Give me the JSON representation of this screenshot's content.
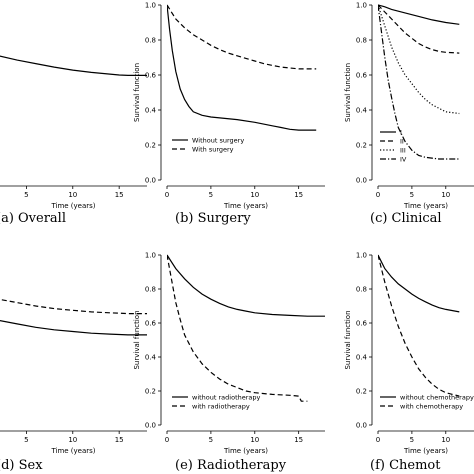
{
  "chart_data": [
    {
      "id": "overall",
      "type": "line",
      "caption": "(a)  Overall",
      "xlabel": "Time (years)",
      "ylabel": "",
      "xlim": [
        0,
        18
      ],
      "ylim": [
        0,
        1
      ],
      "xticks": [
        "5",
        "10",
        "15"
      ],
      "yticks": [],
      "legend": [],
      "series": [
        {
          "style": "solid",
          "points": [
            [
              -1,
              0.76
            ],
            [
              0,
              0.74
            ],
            [
              2,
              0.71
            ],
            [
              4,
              0.685
            ],
            [
              6,
              0.665
            ],
            [
              8,
              0.645
            ],
            [
              10,
              0.628
            ],
            [
              12,
              0.615
            ],
            [
              14,
              0.605
            ],
            [
              15,
              0.6
            ],
            [
              16,
              0.598
            ],
            [
              18,
              0.598
            ]
          ]
        }
      ]
    },
    {
      "id": "surgery",
      "type": "line",
      "caption": "(b)  Surgery",
      "xlabel": "Time (years)",
      "ylabel": "Survival function",
      "xlim": [
        0,
        18
      ],
      "ylim": [
        0,
        1
      ],
      "xticks": [
        "0",
        "5",
        "10",
        "15"
      ],
      "yticks": [
        "0.0",
        "0.2",
        "0.4",
        "0.6",
        "0.8",
        "1.0"
      ],
      "legend": [
        {
          "label": "Without surgery",
          "style": "solid"
        },
        {
          "label": "With surgery",
          "style": "dashed"
        }
      ],
      "series": [
        {
          "style": "solid",
          "points": [
            [
              0,
              1.0
            ],
            [
              0.3,
              0.86
            ],
            [
              0.6,
              0.74
            ],
            [
              1,
              0.62
            ],
            [
              1.5,
              0.52
            ],
            [
              2,
              0.46
            ],
            [
              2.5,
              0.42
            ],
            [
              3,
              0.39
            ],
            [
              4,
              0.37
            ],
            [
              5,
              0.36
            ],
            [
              6,
              0.355
            ],
            [
              8,
              0.345
            ],
            [
              10,
              0.33
            ],
            [
              12,
              0.31
            ],
            [
              13,
              0.3
            ],
            [
              14,
              0.29
            ],
            [
              15,
              0.285
            ],
            [
              17,
              0.285
            ]
          ]
        },
        {
          "style": "dashed",
          "points": [
            [
              0,
              1.0
            ],
            [
              1,
              0.92
            ],
            [
              2,
              0.87
            ],
            [
              3,
              0.83
            ],
            [
              4,
              0.8
            ],
            [
              5,
              0.77
            ],
            [
              6,
              0.745
            ],
            [
              7,
              0.725
            ],
            [
              8,
              0.71
            ],
            [
              9,
              0.695
            ],
            [
              10,
              0.68
            ],
            [
              11,
              0.665
            ],
            [
              12,
              0.655
            ],
            [
              13,
              0.645
            ],
            [
              14,
              0.64
            ],
            [
              15,
              0.635
            ],
            [
              17,
              0.635
            ]
          ]
        }
      ]
    },
    {
      "id": "clinical",
      "type": "line",
      "caption": "(c)  Clinical",
      "xlabel": "Time (years)",
      "ylabel": "Survival function",
      "xlim": [
        0,
        18
      ],
      "ylim": [
        0,
        1
      ],
      "xticks": [
        "0",
        "5",
        "10"
      ],
      "yticks": [
        "0.0",
        "0.2",
        "0.4",
        "0.6",
        "0.8",
        "1.0"
      ],
      "legend": [
        {
          "label": "I",
          "style": "solid"
        },
        {
          "label": "II",
          "style": "dashed"
        },
        {
          "label": "III",
          "style": "dotted"
        },
        {
          "label": "IV",
          "style": "dashdot"
        }
      ],
      "series": [
        {
          "style": "solid",
          "points": [
            [
              0,
              1.0
            ],
            [
              1,
              0.99
            ],
            [
              2,
              0.975
            ],
            [
              4,
              0.955
            ],
            [
              6,
              0.935
            ],
            [
              8,
              0.915
            ],
            [
              10,
              0.9
            ],
            [
              12,
              0.89
            ]
          ]
        },
        {
          "style": "dashed",
          "points": [
            [
              0,
              1.0
            ],
            [
              1,
              0.96
            ],
            [
              2,
              0.92
            ],
            [
              3,
              0.88
            ],
            [
              4,
              0.84
            ],
            [
              5,
              0.81
            ],
            [
              6,
              0.78
            ],
            [
              7,
              0.76
            ],
            [
              8,
              0.745
            ],
            [
              9,
              0.735
            ],
            [
              10,
              0.73
            ],
            [
              12,
              0.725
            ]
          ]
        },
        {
          "style": "dotted",
          "points": [
            [
              0,
              1.0
            ],
            [
              1,
              0.88
            ],
            [
              2,
              0.76
            ],
            [
              3,
              0.67
            ],
            [
              4,
              0.6
            ],
            [
              5,
              0.55
            ],
            [
              6,
              0.5
            ],
            [
              7,
              0.46
            ],
            [
              8,
              0.43
            ],
            [
              9,
              0.41
            ],
            [
              10,
              0.39
            ],
            [
              12,
              0.38
            ]
          ]
        },
        {
          "style": "dashdot",
          "points": [
            [
              0,
              1.0
            ],
            [
              0.5,
              0.85
            ],
            [
              1,
              0.7
            ],
            [
              1.5,
              0.57
            ],
            [
              2,
              0.47
            ],
            [
              2.5,
              0.38
            ],
            [
              3,
              0.3
            ],
            [
              4,
              0.22
            ],
            [
              5,
              0.17
            ],
            [
              6,
              0.14
            ],
            [
              7,
              0.13
            ],
            [
              9,
              0.12
            ],
            [
              12,
              0.12
            ]
          ]
        }
      ]
    },
    {
      "id": "sex",
      "type": "line",
      "caption": "(d)  Sex",
      "xlabel": "Time (years)",
      "ylabel": "",
      "xlim": [
        0,
        18
      ],
      "ylim": [
        0,
        1
      ],
      "xticks": [
        "5",
        "10",
        "15"
      ],
      "yticks": [],
      "legend": [],
      "series": [
        {
          "style": "solid",
          "points": [
            [
              -1,
              0.66
            ],
            [
              0,
              0.64
            ],
            [
              2,
              0.615
            ],
            [
              4,
              0.595
            ],
            [
              6,
              0.575
            ],
            [
              8,
              0.56
            ],
            [
              10,
              0.55
            ],
            [
              12,
              0.54
            ],
            [
              14,
              0.535
            ],
            [
              16,
              0.53
            ],
            [
              18,
              0.53
            ]
          ]
        },
        {
          "style": "dashed",
          "points": [
            [
              -1,
              0.78
            ],
            [
              0,
              0.765
            ],
            [
              2,
              0.74
            ],
            [
              4,
              0.72
            ],
            [
              6,
              0.7
            ],
            [
              8,
              0.685
            ],
            [
              10,
              0.675
            ],
            [
              12,
              0.665
            ],
            [
              14,
              0.66
            ],
            [
              16,
              0.655
            ],
            [
              18,
              0.655
            ]
          ]
        }
      ]
    },
    {
      "id": "radiotherapy",
      "type": "line",
      "caption": "(e)  Radiotherapy",
      "xlabel": "Time (years)",
      "ylabel": "Survival function",
      "xlim": [
        0,
        18
      ],
      "ylim": [
        0,
        1
      ],
      "xticks": [
        "0",
        "5",
        "10",
        "15"
      ],
      "yticks": [
        "0.0",
        "0.2",
        "0.4",
        "0.6",
        "0.8",
        "1.0"
      ],
      "legend": [
        {
          "label": "without radiotherapy",
          "style": "solid"
        },
        {
          "label": "with radiotherapy",
          "style": "dashed"
        }
      ],
      "series": [
        {
          "style": "solid",
          "points": [
            [
              0,
              1.0
            ],
            [
              1,
              0.92
            ],
            [
              2,
              0.86
            ],
            [
              3,
              0.81
            ],
            [
              4,
              0.77
            ],
            [
              5,
              0.74
            ],
            [
              6,
              0.715
            ],
            [
              7,
              0.695
            ],
            [
              8,
              0.68
            ],
            [
              9,
              0.67
            ],
            [
              10,
              0.66
            ],
            [
              12,
              0.65
            ],
            [
              14,
              0.645
            ],
            [
              16,
              0.64
            ],
            [
              18,
              0.64
            ]
          ]
        },
        {
          "style": "dashed",
          "points": [
            [
              0,
              1.0
            ],
            [
              0.5,
              0.86
            ],
            [
              1,
              0.72
            ],
            [
              1.5,
              0.62
            ],
            [
              2,
              0.53
            ],
            [
              3,
              0.43
            ],
            [
              4,
              0.36
            ],
            [
              5,
              0.31
            ],
            [
              6,
              0.27
            ],
            [
              7,
              0.24
            ],
            [
              8,
              0.22
            ],
            [
              9,
              0.2
            ],
            [
              10,
              0.19
            ],
            [
              12,
              0.18
            ],
            [
              14,
              0.175
            ],
            [
              15,
              0.17
            ],
            [
              15.3,
              0.14
            ],
            [
              16,
              0.14
            ]
          ]
        }
      ]
    },
    {
      "id": "chemotherapy",
      "type": "line",
      "caption": "(f)  Chemot",
      "xlabel": "Time (years)",
      "ylabel": "Survival function",
      "xlim": [
        0,
        18
      ],
      "ylim": [
        0,
        1
      ],
      "xticks": [
        "0",
        "5",
        "10"
      ],
      "yticks": [
        "0.0",
        "0.2",
        "0.4",
        "0.6",
        "0.8",
        "1.0"
      ],
      "legend": [
        {
          "label": "without chemotherapy",
          "style": "solid"
        },
        {
          "label": "with chemotherapy",
          "style": "dashed"
        }
      ],
      "series": [
        {
          "style": "solid",
          "points": [
            [
              0,
              1.0
            ],
            [
              1,
              0.92
            ],
            [
              2,
              0.87
            ],
            [
              3,
              0.83
            ],
            [
              4,
              0.8
            ],
            [
              5,
              0.77
            ],
            [
              6,
              0.745
            ],
            [
              7,
              0.725
            ],
            [
              8,
              0.705
            ],
            [
              9,
              0.69
            ],
            [
              10,
              0.68
            ],
            [
              12,
              0.665
            ]
          ]
        },
        {
          "style": "dashed",
          "points": [
            [
              0,
              1.0
            ],
            [
              1,
              0.84
            ],
            [
              2,
              0.7
            ],
            [
              3,
              0.58
            ],
            [
              4,
              0.48
            ],
            [
              5,
              0.4
            ],
            [
              6,
              0.33
            ],
            [
              7,
              0.28
            ],
            [
              8,
              0.24
            ],
            [
              9,
              0.21
            ],
            [
              10,
              0.19
            ],
            [
              12,
              0.17
            ]
          ]
        }
      ]
    }
  ]
}
